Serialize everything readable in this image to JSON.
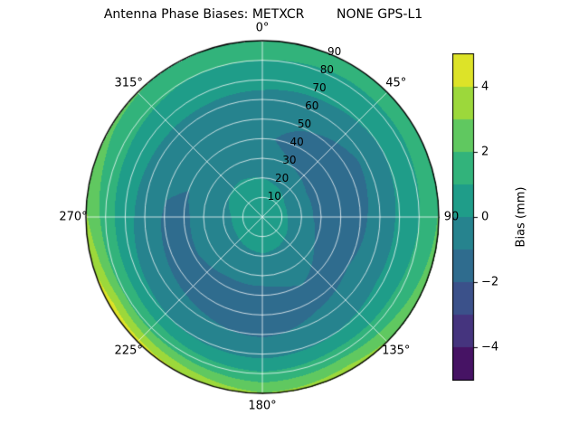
{
  "title": "Antenna Phase Biases: METXCR        NONE GPS-L1",
  "chart_data": {
    "type": "heatmap",
    "projection": "polar",
    "title": "Antenna Phase Biases: METXCR        NONE GPS-L1",
    "theta_ticks": [
      {
        "angle_deg": 0,
        "label": "0°"
      },
      {
        "angle_deg": 45,
        "label": "45°"
      },
      {
        "angle_deg": 90,
        "label": "90"
      },
      {
        "angle_deg": 135,
        "label": "135°"
      },
      {
        "angle_deg": 180,
        "label": "180°"
      },
      {
        "angle_deg": 225,
        "label": "225°"
      },
      {
        "angle_deg": 270,
        "label": "270°"
      },
      {
        "angle_deg": 315,
        "label": "315°"
      }
    ],
    "r_ticks": {
      "label_angle_deg": 22.5,
      "values": [
        10,
        20,
        30,
        40,
        50,
        60,
        70,
        80,
        90
      ],
      "labels": [
        "10",
        "20",
        "30",
        "40",
        "50",
        "60",
        "70",
        "80",
        "90"
      ]
    },
    "r_max": 90,
    "azimuth_deg": [
      0,
      30,
      60,
      90,
      120,
      150,
      180,
      210,
      240,
      270,
      300,
      330,
      360
    ],
    "zenith_deg": [
      0,
      10,
      20,
      30,
      40,
      50,
      60,
      70,
      80,
      90
    ],
    "values_mm": [
      [
        0.7,
        0.7,
        0.7,
        0.7,
        0.7,
        0.7,
        0.7,
        0.7,
        0.7,
        0.7,
        0.7,
        0.7,
        0.7
      ],
      [
        0.5,
        0.4,
        0.2,
        0.2,
        0.3,
        0.4,
        0.5,
        0.5,
        0.4,
        0.3,
        0.4,
        0.5,
        0.5
      ],
      [
        0.0,
        -0.2,
        -0.5,
        -0.6,
        -0.4,
        -0.2,
        -0.1,
        -0.2,
        -0.3,
        -0.2,
        0.0,
        0.1,
        0.0
      ],
      [
        -0.5,
        -1.0,
        -1.4,
        -1.3,
        -1.0,
        -0.8,
        -0.8,
        -0.7,
        -0.6,
        -0.5,
        -0.4,
        -0.4,
        -0.5
      ],
      [
        -0.8,
        -1.5,
        -1.9,
        -1.6,
        -1.2,
        -1.0,
        -1.2,
        -1.3,
        -1.1,
        -1.2,
        -0.9,
        -0.8,
        -0.8
      ],
      [
        -0.6,
        -1.0,
        -1.4,
        -1.2,
        -1.0,
        -1.2,
        -1.5,
        -1.3,
        -1.2,
        -1.1,
        -0.8,
        -0.6,
        -0.6
      ],
      [
        -0.3,
        -0.5,
        -0.8,
        -0.6,
        -0.6,
        -0.8,
        -1.1,
        -0.9,
        -0.7,
        -0.5,
        -0.4,
        -0.3,
        -0.3
      ],
      [
        0.3,
        0.2,
        0.0,
        0.2,
        0.3,
        0.0,
        -0.3,
        -0.1,
        0.2,
        0.4,
        0.5,
        0.4,
        0.3
      ],
      [
        1.0,
        0.8,
        0.8,
        1.0,
        1.3,
        1.5,
        1.2,
        1.5,
        1.8,
        1.5,
        1.2,
        1.0,
        1.0
      ],
      [
        1.8,
        1.6,
        1.7,
        2.1,
        2.6,
        3.6,
        3.1,
        4.1,
        4.6,
        3.1,
        2.2,
        1.9,
        1.8
      ]
    ],
    "levels": {
      "min": -5,
      "max": 5,
      "step": 1
    },
    "colormap": "viridis",
    "colorbar": {
      "label": "Bias (mm)",
      "tick_values": [
        4,
        2,
        0,
        -2,
        -4
      ],
      "tick_labels": [
        "4",
        "2",
        "0",
        "−2",
        "−4"
      ],
      "vmin": -5,
      "vmax": 5
    }
  },
  "colors": {
    "background": "#ffffff",
    "outline": "#000000",
    "grid": "rgba(255,255,255,0.75)",
    "viridis_stops": [
      "#440154",
      "#482878",
      "#3e4989",
      "#31688e",
      "#26828e",
      "#1f9e89",
      "#35b779",
      "#6ece58",
      "#b5de2b",
      "#fde725"
    ]
  }
}
